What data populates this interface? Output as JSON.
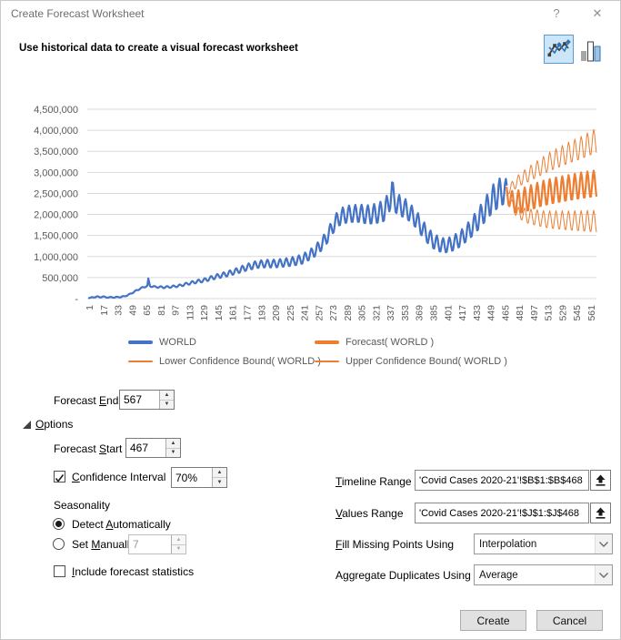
{
  "window": {
    "title": "Create Forecast Worksheet",
    "help": "?",
    "close": "✕"
  },
  "header": {
    "subtitle": "Use historical data to create a visual forecast worksheet"
  },
  "chart_data": {
    "type": "line",
    "title": "",
    "ylim": [
      0,
      4500000
    ],
    "y_ticks": [
      "4,500,000",
      "4,000,000",
      "3,500,000",
      "3,000,000",
      "2,500,000",
      "2,000,000",
      "1,500,000",
      "1,000,000",
      "500,000",
      "-"
    ],
    "x_domain": [
      1,
      567
    ],
    "x_ticks": [
      1,
      17,
      33,
      49,
      65,
      81,
      97,
      113,
      129,
      145,
      161,
      177,
      193,
      209,
      225,
      241,
      257,
      273,
      289,
      305,
      321,
      337,
      353,
      369,
      385,
      401,
      417,
      433,
      449,
      465,
      481,
      497,
      513,
      529,
      545,
      561
    ],
    "grid": true,
    "legend_position": "bottom",
    "weekly_period": 7,
    "note": "values in millions; series = trend keypoints + weekly oscillation amplitude keypoints",
    "series": [
      {
        "name": "WORLD",
        "color": "#4472C4",
        "stroke_width": 2.2,
        "x_range": [
          1,
          467
        ],
        "trend": [
          [
            1,
            0.02
          ],
          [
            6,
            0.03
          ],
          [
            10,
            0.05
          ],
          [
            13,
            0.03
          ],
          [
            16,
            0.05
          ],
          [
            20,
            0.03
          ],
          [
            26,
            0.03
          ],
          [
            33,
            0.035
          ],
          [
            40,
            0.05
          ],
          [
            46,
            0.1
          ],
          [
            52,
            0.17
          ],
          [
            58,
            0.24
          ],
          [
            63,
            0.28
          ],
          [
            66,
            0.3
          ],
          [
            67,
            0.46
          ],
          [
            69,
            0.3
          ],
          [
            74,
            0.28
          ],
          [
            84,
            0.27
          ],
          [
            92,
            0.28
          ],
          [
            100,
            0.3
          ],
          [
            110,
            0.35
          ],
          [
            120,
            0.4
          ],
          [
            130,
            0.44
          ],
          [
            142,
            0.52
          ],
          [
            154,
            0.58
          ],
          [
            166,
            0.66
          ],
          [
            178,
            0.75
          ],
          [
            188,
            0.81
          ],
          [
            198,
            0.83
          ],
          [
            208,
            0.83
          ],
          [
            218,
            0.85
          ],
          [
            228,
            0.88
          ],
          [
            238,
            0.93
          ],
          [
            248,
            1.05
          ],
          [
            254,
            1.15
          ],
          [
            260,
            1.28
          ],
          [
            266,
            1.45
          ],
          [
            272,
            1.68
          ],
          [
            278,
            1.88
          ],
          [
            284,
            1.97
          ],
          [
            292,
            2.01
          ],
          [
            302,
            2.02
          ],
          [
            312,
            1.99
          ],
          [
            320,
            2.01
          ],
          [
            328,
            2.06
          ],
          [
            334,
            2.18
          ],
          [
            337,
            2.42
          ],
          [
            339,
            2.58
          ],
          [
            341,
            2.35
          ],
          [
            346,
            2.22
          ],
          [
            352,
            2.16
          ],
          [
            358,
            2.06
          ],
          [
            366,
            1.88
          ],
          [
            374,
            1.63
          ],
          [
            382,
            1.42
          ],
          [
            390,
            1.3
          ],
          [
            398,
            1.25
          ],
          [
            406,
            1.3
          ],
          [
            414,
            1.4
          ],
          [
            422,
            1.55
          ],
          [
            430,
            1.74
          ],
          [
            438,
            1.96
          ],
          [
            446,
            2.2
          ],
          [
            452,
            2.38
          ],
          [
            458,
            2.5
          ],
          [
            463,
            2.55
          ],
          [
            467,
            2.5
          ]
        ],
        "amp": [
          [
            1,
            0.008
          ],
          [
            40,
            0.012
          ],
          [
            70,
            0.018
          ],
          [
            100,
            0.025
          ],
          [
            130,
            0.045
          ],
          [
            160,
            0.065
          ],
          [
            190,
            0.09
          ],
          [
            220,
            0.1
          ],
          [
            245,
            0.12
          ],
          [
            265,
            0.16
          ],
          [
            285,
            0.2
          ],
          [
            305,
            0.22
          ],
          [
            325,
            0.25
          ],
          [
            337,
            0.3
          ],
          [
            345,
            0.26
          ],
          [
            360,
            0.22
          ],
          [
            380,
            0.2
          ],
          [
            400,
            0.17
          ],
          [
            420,
            0.2
          ],
          [
            440,
            0.28
          ],
          [
            455,
            0.35
          ],
          [
            467,
            0.33
          ]
        ]
      },
      {
        "name": "Forecast( WORLD )",
        "color": "#ED7D31",
        "stroke_width": 2.2,
        "x_range": [
          467,
          567
        ],
        "trend": [
          [
            467,
            2.5
          ],
          [
            474,
            2.28
          ],
          [
            482,
            2.3
          ],
          [
            492,
            2.38
          ],
          [
            505,
            2.48
          ],
          [
            520,
            2.56
          ],
          [
            535,
            2.62
          ],
          [
            550,
            2.68
          ],
          [
            567,
            2.73
          ]
        ],
        "amp": [
          [
            467,
            0.22
          ],
          [
            485,
            0.3
          ],
          [
            567,
            0.32
          ]
        ]
      },
      {
        "name": "Lower Confidence Bound( WORLD )",
        "color": "#ED7D31",
        "stroke_width": 1,
        "x_range": [
          467,
          567
        ],
        "trend": [
          [
            467,
            2.45
          ],
          [
            478,
            2.05
          ],
          [
            492,
            1.95
          ],
          [
            510,
            1.88
          ],
          [
            535,
            1.85
          ],
          [
            567,
            1.83
          ]
        ],
        "amp": [
          [
            467,
            0.08
          ],
          [
            490,
            0.18
          ],
          [
            520,
            0.22
          ],
          [
            567,
            0.27
          ]
        ]
      },
      {
        "name": "Upper Confidence Bound( WORLD )",
        "color": "#ED7D31",
        "stroke_width": 1,
        "x_range": [
          467,
          567
        ],
        "trend": [
          [
            467,
            2.55
          ],
          [
            480,
            2.8
          ],
          [
            495,
            3.0
          ],
          [
            515,
            3.25
          ],
          [
            535,
            3.45
          ],
          [
            550,
            3.58
          ],
          [
            567,
            3.75
          ]
        ],
        "amp": [
          [
            467,
            0.1
          ],
          [
            490,
            0.18
          ],
          [
            520,
            0.24
          ],
          [
            567,
            0.3
          ]
        ]
      }
    ]
  },
  "form": {
    "forecast_end": {
      "pre": "Forecast ",
      "key": "E",
      "post": "nd",
      "value": "567"
    },
    "options": {
      "pre": "",
      "key": "O",
      "post": "ptions"
    },
    "forecast_start": {
      "pre": "Forecast ",
      "key": "S",
      "post": "tart",
      "value": "467"
    },
    "confidence_interval": {
      "pre": "",
      "key": "C",
      "post": "onfidence Interval",
      "value": "70%",
      "checked": true
    },
    "seasonality_label": "Seasonality",
    "detect_auto": {
      "pre": "Detect ",
      "key": "A",
      "post": "utomatically",
      "selected": true
    },
    "set_manually": {
      "pre": "Set ",
      "key": "M",
      "post": "anually",
      "value": "7",
      "selected": false
    },
    "include_stats": {
      "pre": "",
      "key": "I",
      "post": "nclude forecast statistics",
      "checked": false
    },
    "timeline_range": {
      "pre": "",
      "key": "T",
      "post": "imeline Range",
      "value": "'Covid Cases 2020-21'!$B$1:$B$468"
    },
    "values_range": {
      "pre": "",
      "key": "V",
      "post": "alues Range",
      "value": "'Covid Cases 2020-21'!$J$1:$J$468"
    },
    "fill_missing": {
      "pre": "",
      "key": "F",
      "post": "ill Missing Points Using",
      "value": "Interpolation"
    },
    "aggregate": {
      "pre": "A",
      "key": "g",
      "post": "gregate Duplicates Using",
      "value": "Average"
    }
  },
  "buttons": {
    "create": "Create",
    "cancel": "Cancel"
  }
}
